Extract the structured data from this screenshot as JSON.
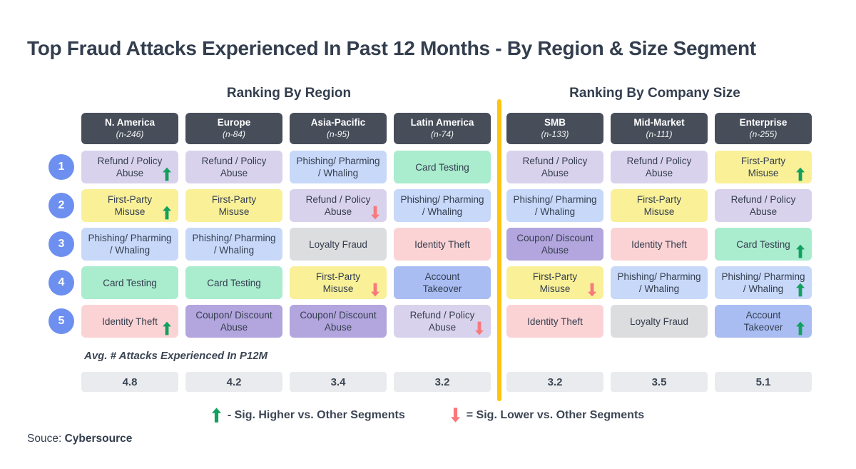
{
  "page": {
    "title": "Top Fraud Attacks Experienced In Past 12 Months - By Region & Size Segment",
    "source_prefix": "Souce:",
    "source_name": "Cybersource"
  },
  "sections": [
    {
      "label": "Ranking By Region"
    },
    {
      "label": "Ranking By Company Size"
    }
  ],
  "rank_labels": [
    "1",
    "2",
    "3",
    "4",
    "5"
  ],
  "avg_row_label": "Avg. # Attacks Experienced In P12M",
  "legend": {
    "higher_text": "- Sig. Higher vs. Other Segments",
    "lower_text": "= Sig. Lower vs. Other Segments"
  },
  "colors": {
    "header_bg": "#474e5a",
    "rank_circle": "#6c8ff0",
    "divider": "#ffc40d",
    "arrow_up": "#12a05e",
    "arrow_down": "#f8797d",
    "avg_cell_bg": "#e9ebee",
    "types": {
      "refund_policy_abuse": "#d9d2ec",
      "first_party_misuse": "#f9f098",
      "phishing_pharming_whaling": "#c8d8f9",
      "card_testing": "#aaecce",
      "identity_theft": "#fcd3d5",
      "loyalty_fraud": "#dcddde",
      "coupon_discount_abuse": "#b3a5dd",
      "account_takeover": "#a9bdf3"
    }
  },
  "columns": [
    {
      "group": "region",
      "name": "N. America",
      "n": "(n-246)",
      "avg": "4.8",
      "ranks": [
        {
          "label": "Refund / Policy\nAbuse",
          "type": "refund_policy_abuse",
          "arrow": "up"
        },
        {
          "label": "First-Party\nMisuse",
          "type": "first_party_misuse",
          "arrow": "up"
        },
        {
          "label": "Phishing/ Pharming\n/ Whaling",
          "type": "phishing_pharming_whaling"
        },
        {
          "label": "Card Testing",
          "type": "card_testing"
        },
        {
          "label": "Identity Theft",
          "type": "identity_theft",
          "arrow": "up"
        }
      ]
    },
    {
      "group": "region",
      "name": "Europe",
      "n": "(n-84)",
      "avg": "4.2",
      "ranks": [
        {
          "label": "Refund / Policy\nAbuse",
          "type": "refund_policy_abuse"
        },
        {
          "label": "First-Party\nMisuse",
          "type": "first_party_misuse"
        },
        {
          "label": "Phishing/ Pharming\n/ Whaling",
          "type": "phishing_pharming_whaling"
        },
        {
          "label": "Card Testing",
          "type": "card_testing"
        },
        {
          "label": "Coupon/ Discount\nAbuse",
          "type": "coupon_discount_abuse"
        }
      ]
    },
    {
      "group": "region",
      "name": "Asia-Pacific",
      "n": "(n-95)",
      "avg": "3.4",
      "ranks": [
        {
          "label": "Phishing/ Pharming\n/ Whaling",
          "type": "phishing_pharming_whaling"
        },
        {
          "label": "Refund / Policy\nAbuse",
          "type": "refund_policy_abuse",
          "arrow": "down"
        },
        {
          "label": "Loyalty Fraud",
          "type": "loyalty_fraud"
        },
        {
          "label": "First-Party\nMisuse",
          "type": "first_party_misuse",
          "arrow": "down"
        },
        {
          "label": "Coupon/ Discount\nAbuse",
          "type": "coupon_discount_abuse"
        }
      ]
    },
    {
      "group": "region",
      "name": "Latin America",
      "n": "(n-74)",
      "avg": "3.2",
      "ranks": [
        {
          "label": "Card Testing",
          "type": "card_testing"
        },
        {
          "label": "Phishing/ Pharming\n/ Whaling",
          "type": "phishing_pharming_whaling"
        },
        {
          "label": "Identity Theft",
          "type": "identity_theft"
        },
        {
          "label": "Account\nTakeover",
          "type": "account_takeover"
        },
        {
          "label": "Refund / Policy\nAbuse",
          "type": "refund_policy_abuse",
          "arrow": "down"
        }
      ]
    },
    {
      "group": "size",
      "name": "SMB",
      "n": "(n-133)",
      "avg": "3.2",
      "ranks": [
        {
          "label": "Refund / Policy\nAbuse",
          "type": "refund_policy_abuse"
        },
        {
          "label": "Phishing/ Pharming\n/ Whaling",
          "type": "phishing_pharming_whaling"
        },
        {
          "label": "Coupon/ Discount\nAbuse",
          "type": "coupon_discount_abuse"
        },
        {
          "label": "First-Party\nMisuse",
          "type": "first_party_misuse",
          "arrow": "down"
        },
        {
          "label": "Identity Theft",
          "type": "identity_theft"
        }
      ]
    },
    {
      "group": "size",
      "name": "Mid-Market",
      "n": "(n-111)",
      "avg": "3.5",
      "ranks": [
        {
          "label": "Refund / Policy\nAbuse",
          "type": "refund_policy_abuse"
        },
        {
          "label": "First-Party\nMisuse",
          "type": "first_party_misuse"
        },
        {
          "label": "Identity Theft",
          "type": "identity_theft"
        },
        {
          "label": "Phishing/ Pharming\n/ Whaling",
          "type": "phishing_pharming_whaling"
        },
        {
          "label": "Loyalty Fraud",
          "type": "loyalty_fraud"
        }
      ]
    },
    {
      "group": "size",
      "name": "Enterprise",
      "n": "(n-255)",
      "avg": "5.1",
      "ranks": [
        {
          "label": "First-Party\nMisuse",
          "type": "first_party_misuse",
          "arrow": "up"
        },
        {
          "label": "Refund / Policy\nAbuse",
          "type": "refund_policy_abuse"
        },
        {
          "label": "Card Testing",
          "type": "card_testing",
          "arrow": "up"
        },
        {
          "label": "Phishing/ Pharming\n/ Whaling",
          "type": "phishing_pharming_whaling",
          "arrow": "up"
        },
        {
          "label": "Account\nTakeover",
          "type": "account_takeover",
          "arrow": "up"
        }
      ]
    }
  ],
  "chart_data": {
    "type": "table",
    "title": "Top Fraud Attacks Experienced In Past 12 Months - By Region & Size Segment",
    "groups": [
      {
        "label": "Ranking By Region",
        "segments": [
          "N. America",
          "Europe",
          "Asia-Pacific",
          "Latin America"
        ]
      },
      {
        "label": "Ranking By Company Size",
        "segments": [
          "SMB",
          "Mid-Market",
          "Enterprise"
        ]
      }
    ],
    "sample_sizes": {
      "N. America": 246,
      "Europe": 84,
      "Asia-Pacific": 95,
      "Latin America": 74,
      "SMB": 133,
      "Mid-Market": 111,
      "Enterprise": 255
    },
    "rank_rows": [
      1,
      2,
      3,
      4,
      5
    ],
    "rankings": {
      "N. America": [
        "Refund / Policy Abuse (sig. higher)",
        "First-Party Misuse (sig. higher)",
        "Phishing/ Pharming / Whaling",
        "Card Testing",
        "Identity Theft (sig. higher)"
      ],
      "Europe": [
        "Refund / Policy Abuse",
        "First-Party Misuse",
        "Phishing/ Pharming / Whaling",
        "Card Testing",
        "Coupon/ Discount Abuse"
      ],
      "Asia-Pacific": [
        "Phishing/ Pharming / Whaling",
        "Refund / Policy Abuse (sig. lower)",
        "Loyalty Fraud",
        "First-Party Misuse (sig. lower)",
        "Coupon/ Discount Abuse"
      ],
      "Latin America": [
        "Card Testing",
        "Phishing/ Pharming / Whaling",
        "Identity Theft",
        "Account Takeover",
        "Refund / Policy Abuse (sig. lower)"
      ],
      "SMB": [
        "Refund / Policy Abuse",
        "Phishing/ Pharming / Whaling",
        "Coupon/ Discount Abuse",
        "First-Party Misuse (sig. lower)",
        "Identity Theft"
      ],
      "Mid-Market": [
        "Refund / Policy Abuse",
        "First-Party Misuse",
        "Identity Theft",
        "Phishing/ Pharming / Whaling",
        "Loyalty Fraud"
      ],
      "Enterprise": [
        "First-Party Misuse (sig. higher)",
        "Refund / Policy Abuse",
        "Card Testing (sig. higher)",
        "Phishing/ Pharming / Whaling (sig. higher)",
        "Account Takeover (sig. higher)"
      ]
    },
    "avg_attacks_p12m": {
      "N. America": 4.8,
      "Europe": 4.2,
      "Asia-Pacific": 3.4,
      "Latin America": 3.2,
      "SMB": 3.2,
      "Mid-Market": 3.5,
      "Enterprise": 5.1
    }
  }
}
